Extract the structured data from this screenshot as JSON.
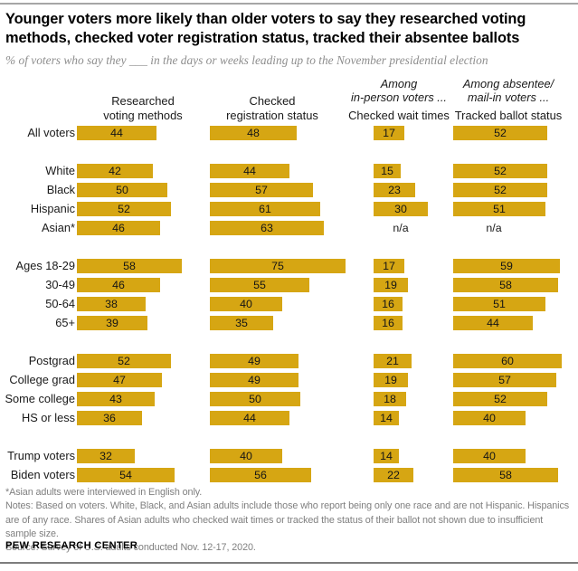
{
  "header": {
    "title_lines": [
      "Younger voters more likely than older voters to say they researched voting",
      "methods, checked voter registration status, tracked their absentee ballots"
    ],
    "subtitle": "% of voters who say they ___ in the days or weeks leading up to the November presidential election"
  },
  "chart_data": {
    "type": "bar",
    "title": "Younger voters more likely than older voters to say they researched voting methods, checked voter registration status, tracked their absentee ballots",
    "subtitle": "% of voters who say they ___ in the days or weeks leading up to the November presidential election",
    "unit": "%",
    "xlim": [
      0,
      100
    ],
    "bar_color": "#D6A613",
    "na_label": "n/a",
    "columns": [
      {
        "name": "Researched voting methods",
        "group_label_lines": [],
        "label_lines": [
          "Researched",
          "voting methods"
        ]
      },
      {
        "name": "Checked registration status",
        "group_label_lines": [],
        "label_lines": [
          "Checked",
          "registration status"
        ]
      },
      {
        "name": "Checked wait times",
        "group_label_lines": [
          "Among",
          "in-person voters ..."
        ],
        "label_lines": [
          "Checked wait times"
        ]
      },
      {
        "name": "Tracked ballot status",
        "group_label_lines": [
          "Among absentee/",
          "mail-in voters ..."
        ],
        "label_lines": [
          "Tracked ballot status"
        ]
      }
    ],
    "groups": [
      {
        "rows": [
          {
            "label": "All voters",
            "values": [
              44,
              48,
              17,
              52
            ]
          }
        ]
      },
      {
        "rows": [
          {
            "label": "White",
            "values": [
              42,
              44,
              15,
              52
            ]
          },
          {
            "label": "Black",
            "values": [
              50,
              57,
              23,
              52
            ]
          },
          {
            "label": "Hispanic",
            "values": [
              52,
              61,
              30,
              51
            ]
          },
          {
            "label": "Asian*",
            "values": [
              46,
              63,
              null,
              null
            ]
          }
        ]
      },
      {
        "rows": [
          {
            "label": "Ages 18-29",
            "values": [
              58,
              75,
              17,
              59
            ]
          },
          {
            "label": "30-49",
            "values": [
              46,
              55,
              19,
              58
            ]
          },
          {
            "label": "50-64",
            "values": [
              38,
              40,
              16,
              51
            ]
          },
          {
            "label": "65+",
            "values": [
              39,
              35,
              16,
              44
            ]
          }
        ]
      },
      {
        "rows": [
          {
            "label": "Postgrad",
            "values": [
              52,
              49,
              21,
              60
            ]
          },
          {
            "label": "College grad",
            "values": [
              47,
              49,
              19,
              57
            ]
          },
          {
            "label": "Some college",
            "values": [
              43,
              50,
              18,
              52
            ]
          },
          {
            "label": "HS or less",
            "values": [
              36,
              44,
              14,
              40
            ]
          }
        ]
      },
      {
        "rows": [
          {
            "label": "Trump voters",
            "values": [
              32,
              40,
              14,
              40
            ]
          },
          {
            "label": "Biden voters",
            "values": [
              54,
              56,
              22,
              58
            ]
          }
        ]
      }
    ]
  },
  "footnotes": {
    "asterisk": "*Asian adults were interviewed in English only.",
    "notes": "Notes: Based on voters. White, Black, and Asian adults include those who report being only one race and are not Hispanic. Hispanics are of any race. Shares of Asian adults who checked wait times or tracked the status of their ballot not shown due to insufficient sample size.",
    "source": "Source: Survey of U.S. adults conducted Nov. 12-17, 2020."
  },
  "footer": {
    "brand": "PEW RESEARCH CENTER"
  }
}
